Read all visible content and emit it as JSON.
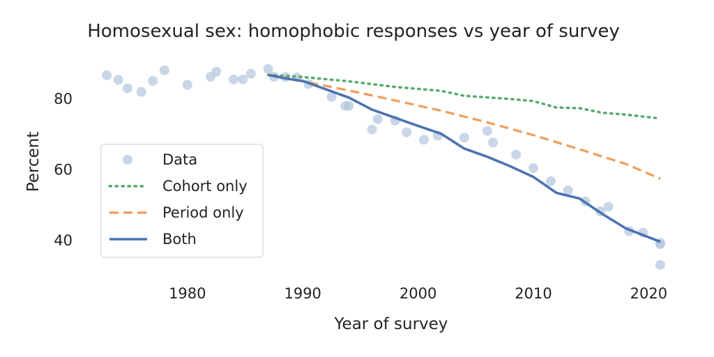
{
  "chart_data": {
    "type": "line",
    "title": "Homosexual sex: homophobic responses vs year of survey",
    "xlabel": "Year of survey",
    "ylabel": "Percent",
    "xlim": [
      1971,
      2023
    ],
    "ylim": [
      30,
      92
    ],
    "xticks": [
      1980,
      1990,
      2000,
      2010,
      2020
    ],
    "yticks": [
      40,
      60,
      80
    ],
    "grid": false,
    "legend_position": "center-left",
    "series": [
      {
        "name": "Data",
        "kind": "scatter",
        "color": "#b0c4de",
        "points": [
          [
            1973,
            86.5
          ],
          [
            1974,
            85.2
          ],
          [
            1974.8,
            82.8
          ],
          [
            1976,
            81.8
          ],
          [
            1977,
            84.9
          ],
          [
            1978,
            87.9
          ],
          [
            1980,
            83.8
          ],
          [
            1982,
            86.1
          ],
          [
            1982.5,
            87.5
          ],
          [
            1984,
            85.3
          ],
          [
            1984.8,
            85.3
          ],
          [
            1985.5,
            86.9
          ],
          [
            1987,
            88.3
          ],
          [
            1987.5,
            86.1
          ],
          [
            1988.5,
            86.0
          ],
          [
            1989.5,
            85.9
          ],
          [
            1990.5,
            84.0
          ],
          [
            1992.5,
            80.4
          ],
          [
            1993.7,
            77.8
          ],
          [
            1994,
            77.9
          ],
          [
            1996,
            71.2
          ],
          [
            1996.5,
            74.1
          ],
          [
            1998,
            73.7
          ],
          [
            1999,
            70.4
          ],
          [
            2000.5,
            68.3
          ],
          [
            2001.7,
            69.4
          ],
          [
            2004,
            68.9
          ],
          [
            2006,
            70.8
          ],
          [
            2006.5,
            67.5
          ],
          [
            2008.5,
            64.1
          ],
          [
            2010,
            60.3
          ],
          [
            2011.5,
            56.6
          ],
          [
            2013,
            54.0
          ],
          [
            2014.5,
            50.9
          ],
          [
            2015.8,
            48.1
          ],
          [
            2016.5,
            49.4
          ],
          [
            2018.3,
            42.5
          ],
          [
            2019.5,
            42.1
          ],
          [
            2021,
            39.2
          ],
          [
            2021,
            38.8
          ],
          [
            2021,
            33.0
          ]
        ]
      },
      {
        "name": "Cohort only",
        "kind": "line",
        "style": "dotted",
        "color": "#55a868",
        "points": [
          [
            1987,
            86.6
          ],
          [
            1990,
            86.0
          ],
          [
            1994,
            84.8
          ],
          [
            1998,
            83.2
          ],
          [
            2002,
            82.1
          ],
          [
            2004,
            80.7
          ],
          [
            2008,
            79.8
          ],
          [
            2010,
            79.2
          ],
          [
            2012,
            77.4
          ],
          [
            2014,
            77.2
          ],
          [
            2016,
            75.9
          ],
          [
            2018,
            75.4
          ],
          [
            2021,
            74.3
          ]
        ]
      },
      {
        "name": "Period only",
        "kind": "line",
        "style": "dashed",
        "color": "#f0a060",
        "points": [
          [
            1987,
            86.6
          ],
          [
            1990,
            84.8
          ],
          [
            1994,
            82.2
          ],
          [
            1998,
            79.4
          ],
          [
            2002,
            76.5
          ],
          [
            2006,
            73.2
          ],
          [
            2010,
            69.6
          ],
          [
            2014,
            65.6
          ],
          [
            2018,
            61.5
          ],
          [
            2021,
            57.3
          ]
        ]
      },
      {
        "name": "Both",
        "kind": "line",
        "style": "solid",
        "color": "#4c72b0",
        "points": [
          [
            1987,
            86.6
          ],
          [
            1988.5,
            85.6
          ],
          [
            1990,
            84.9
          ],
          [
            1994,
            80.2
          ],
          [
            1996,
            76.8
          ],
          [
            2000,
            72.2
          ],
          [
            2002,
            70.0
          ],
          [
            2004,
            65.8
          ],
          [
            2006,
            63.5
          ],
          [
            2008,
            60.8
          ],
          [
            2010,
            57.8
          ],
          [
            2012,
            53.3
          ],
          [
            2014,
            51.7
          ],
          [
            2016,
            47.3
          ],
          [
            2018,
            43.3
          ],
          [
            2021,
            39.5
          ]
        ]
      }
    ]
  }
}
